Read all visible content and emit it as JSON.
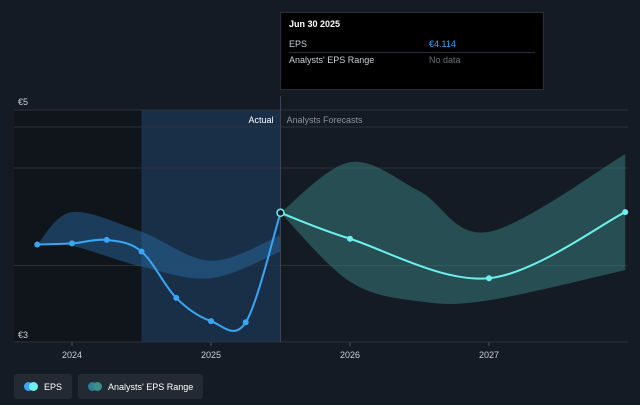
{
  "tooltip": {
    "title": "Jun 30 2025",
    "rows": [
      {
        "label": "EPS",
        "value": "€4.114"
      },
      {
        "label": "Analysts' EPS Range",
        "value": "No data"
      }
    ]
  },
  "section_labels": {
    "actual": "Actual",
    "forecast": "Analysts Forecasts"
  },
  "legend": [
    {
      "label": "EPS",
      "color": "#3ba5f5"
    },
    {
      "label": "Analysts' EPS Range",
      "color": "#2f7f96"
    }
  ],
  "colors": {
    "background": "#151b24",
    "eps_actual": "#3ba5f5",
    "eps_forecast": "#6ef0ee",
    "range_past": "#2a6ea8",
    "range_forecast": "#3b8f8d",
    "highlight": "#1b3450"
  },
  "chart_data": {
    "type": "line",
    "y_axis": {
      "min": 3,
      "max": 5,
      "tick_labels": [
        "€5",
        "€3"
      ]
    },
    "x_axis": {
      "tick_labels": [
        "2024",
        "2025",
        "2026",
        "2027"
      ],
      "tick_values": [
        2024,
        2025,
        2026,
        2027
      ]
    },
    "highlight_region": [
      2024.5,
      2025.5
    ],
    "series": [
      {
        "name": "EPS",
        "segment": "actual",
        "points": [
          [
            2023.75,
            3.84
          ],
          [
            2024.0,
            3.85
          ],
          [
            2024.25,
            3.88
          ],
          [
            2024.5,
            3.78
          ],
          [
            2024.75,
            3.38
          ],
          [
            2025.0,
            3.18
          ],
          [
            2025.25,
            3.17
          ],
          [
            2025.5,
            4.114
          ]
        ]
      },
      {
        "name": "EPS",
        "segment": "forecast",
        "points": [
          [
            2025.5,
            4.114
          ],
          [
            2026.0,
            3.89
          ],
          [
            2027.0,
            3.55
          ],
          [
            2027.98,
            4.12
          ]
        ]
      }
    ],
    "range": [
      {
        "name": "Analysts' EPS Range",
        "segment": "past",
        "upper": [
          [
            2023.75,
            3.84
          ],
          [
            2024.0,
            4.12
          ],
          [
            2024.5,
            3.95
          ],
          [
            2025.0,
            3.7
          ],
          [
            2025.5,
            3.92
          ]
        ],
        "lower": [
          [
            2023.75,
            3.84
          ],
          [
            2024.0,
            3.83
          ],
          [
            2024.5,
            3.65
          ],
          [
            2025.0,
            3.55
          ],
          [
            2025.5,
            3.78
          ]
        ]
      },
      {
        "name": "Analysts' EPS Range",
        "segment": "forecast",
        "upper": [
          [
            2025.5,
            4.114
          ],
          [
            2026.0,
            4.55
          ],
          [
            2026.5,
            4.3
          ],
          [
            2027.0,
            3.95
          ],
          [
            2027.98,
            4.62
          ]
        ],
        "lower": [
          [
            2025.5,
            4.114
          ],
          [
            2026.0,
            3.52
          ],
          [
            2026.5,
            3.35
          ],
          [
            2027.0,
            3.36
          ],
          [
            2027.98,
            3.62
          ]
        ]
      }
    ]
  }
}
